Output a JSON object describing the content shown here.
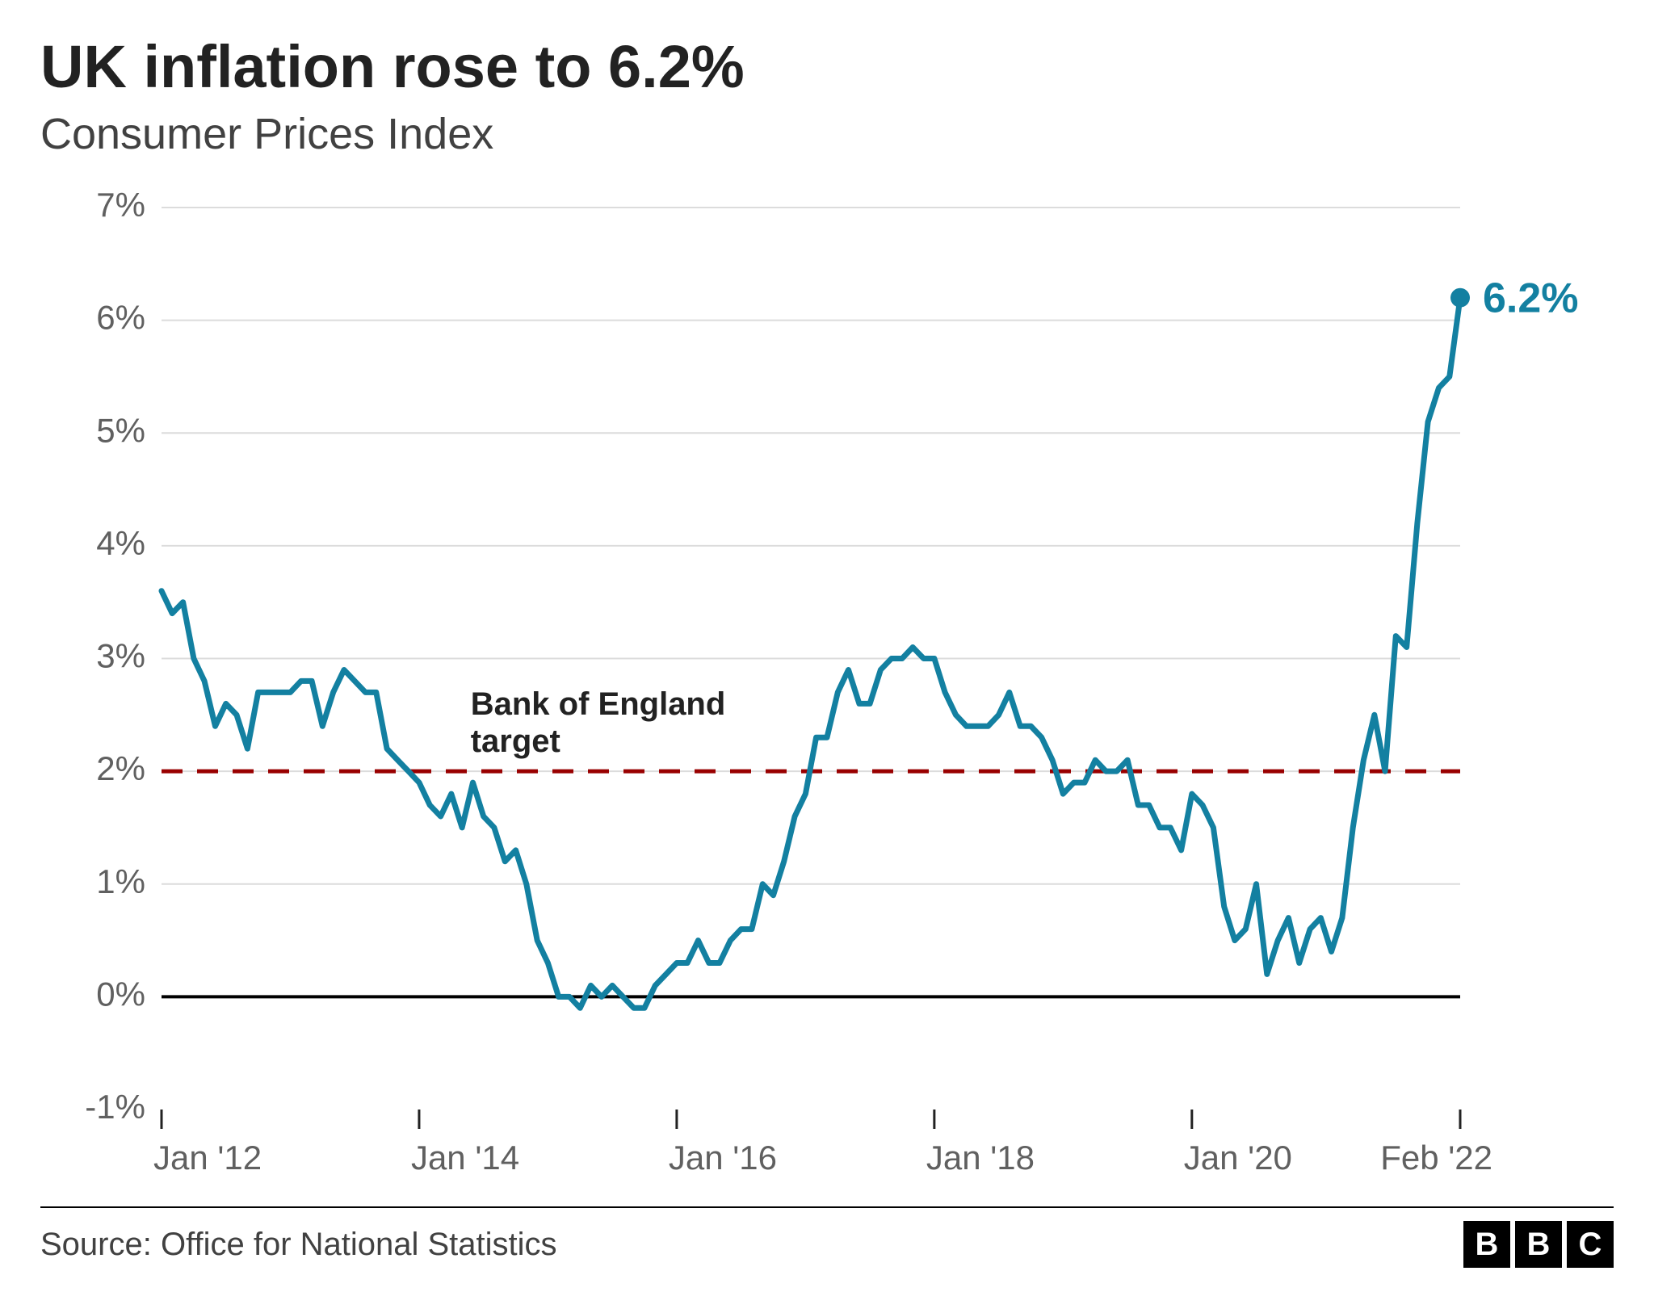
{
  "title": "UK inflation rose to 6.2%",
  "subtitle": "Consumer Prices Index",
  "source_label": "Source: Office for National Statistics",
  "logo_letters": [
    "B",
    "B",
    "C"
  ],
  "chart": {
    "type": "line",
    "background_color": "#ffffff",
    "grid_color": "#dcdcdc",
    "axis_color": "#222222",
    "zero_line_color": "#000000",
    "tick_color": "#222222",
    "line_color": "#1380a1",
    "line_width": 7,
    "marker_radius": 12,
    "marker_color": "#1380a1",
    "target_line_color": "#990000",
    "target_line_dash": "26 18",
    "target_value": 2.0,
    "target_label": "Bank of England\ntarget",
    "target_label_font_size": 40,
    "target_label_font_weight": 700,
    "target_label_color": "#222222",
    "callout_text": "6.2%",
    "callout_color": "#1380a1",
    "callout_font_size": 52,
    "callout_font_weight": 700,
    "ylim": [
      -1,
      7
    ],
    "y_ticks": [
      -1,
      0,
      1,
      2,
      3,
      4,
      5,
      6,
      7
    ],
    "y_tick_labels": [
      "-1%",
      "0%",
      "1%",
      "2%",
      "3%",
      "4%",
      "5%",
      "6%",
      "7%"
    ],
    "y_tick_font_size": 42,
    "y_tick_color": "#606060",
    "x_domain": [
      2012.0,
      2022.083
    ],
    "x_ticks": [
      2012.0,
      2014.0,
      2016.0,
      2018.0,
      2020.0,
      2022.083
    ],
    "x_tick_labels": [
      "Jan '12",
      "Jan '14",
      "Jan '16",
      "Jan '18",
      "Jan '20",
      "Feb '22"
    ],
    "x_tick_font_size": 42,
    "x_tick_color": "#606060",
    "data": [
      [
        2012.0,
        3.6
      ],
      [
        2012.083,
        3.4
      ],
      [
        2012.167,
        3.5
      ],
      [
        2012.25,
        3.0
      ],
      [
        2012.333,
        2.8
      ],
      [
        2012.417,
        2.4
      ],
      [
        2012.5,
        2.6
      ],
      [
        2012.583,
        2.5
      ],
      [
        2012.667,
        2.2
      ],
      [
        2012.75,
        2.7
      ],
      [
        2012.833,
        2.7
      ],
      [
        2012.917,
        2.7
      ],
      [
        2013.0,
        2.7
      ],
      [
        2013.083,
        2.8
      ],
      [
        2013.167,
        2.8
      ],
      [
        2013.25,
        2.4
      ],
      [
        2013.333,
        2.7
      ],
      [
        2013.417,
        2.9
      ],
      [
        2013.5,
        2.8
      ],
      [
        2013.583,
        2.7
      ],
      [
        2013.667,
        2.7
      ],
      [
        2013.75,
        2.2
      ],
      [
        2013.833,
        2.1
      ],
      [
        2013.917,
        2.0
      ],
      [
        2014.0,
        1.9
      ],
      [
        2014.083,
        1.7
      ],
      [
        2014.167,
        1.6
      ],
      [
        2014.25,
        1.8
      ],
      [
        2014.333,
        1.5
      ],
      [
        2014.417,
        1.9
      ],
      [
        2014.5,
        1.6
      ],
      [
        2014.583,
        1.5
      ],
      [
        2014.667,
        1.2
      ],
      [
        2014.75,
        1.3
      ],
      [
        2014.833,
        1.0
      ],
      [
        2014.917,
        0.5
      ],
      [
        2015.0,
        0.3
      ],
      [
        2015.083,
        0.0
      ],
      [
        2015.167,
        0.0
      ],
      [
        2015.25,
        -0.1
      ],
      [
        2015.333,
        0.1
      ],
      [
        2015.417,
        0.0
      ],
      [
        2015.5,
        0.1
      ],
      [
        2015.583,
        0.0
      ],
      [
        2015.667,
        -0.1
      ],
      [
        2015.75,
        -0.1
      ],
      [
        2015.833,
        0.1
      ],
      [
        2015.917,
        0.2
      ],
      [
        2016.0,
        0.3
      ],
      [
        2016.083,
        0.3
      ],
      [
        2016.167,
        0.5
      ],
      [
        2016.25,
        0.3
      ],
      [
        2016.333,
        0.3
      ],
      [
        2016.417,
        0.5
      ],
      [
        2016.5,
        0.6
      ],
      [
        2016.583,
        0.6
      ],
      [
        2016.667,
        1.0
      ],
      [
        2016.75,
        0.9
      ],
      [
        2016.833,
        1.2
      ],
      [
        2016.917,
        1.6
      ],
      [
        2017.0,
        1.8
      ],
      [
        2017.083,
        2.3
      ],
      [
        2017.167,
        2.3
      ],
      [
        2017.25,
        2.7
      ],
      [
        2017.333,
        2.9
      ],
      [
        2017.417,
        2.6
      ],
      [
        2017.5,
        2.6
      ],
      [
        2017.583,
        2.9
      ],
      [
        2017.667,
        3.0
      ],
      [
        2017.75,
        3.0
      ],
      [
        2017.833,
        3.1
      ],
      [
        2017.917,
        3.0
      ],
      [
        2018.0,
        3.0
      ],
      [
        2018.083,
        2.7
      ],
      [
        2018.167,
        2.5
      ],
      [
        2018.25,
        2.4
      ],
      [
        2018.333,
        2.4
      ],
      [
        2018.417,
        2.4
      ],
      [
        2018.5,
        2.5
      ],
      [
        2018.583,
        2.7
      ],
      [
        2018.667,
        2.4
      ],
      [
        2018.75,
        2.4
      ],
      [
        2018.833,
        2.3
      ],
      [
        2018.917,
        2.1
      ],
      [
        2019.0,
        1.8
      ],
      [
        2019.083,
        1.9
      ],
      [
        2019.167,
        1.9
      ],
      [
        2019.25,
        2.1
      ],
      [
        2019.333,
        2.0
      ],
      [
        2019.417,
        2.0
      ],
      [
        2019.5,
        2.1
      ],
      [
        2019.583,
        1.7
      ],
      [
        2019.667,
        1.7
      ],
      [
        2019.75,
        1.5
      ],
      [
        2019.833,
        1.5
      ],
      [
        2019.917,
        1.3
      ],
      [
        2020.0,
        1.8
      ],
      [
        2020.083,
        1.7
      ],
      [
        2020.167,
        1.5
      ],
      [
        2020.25,
        0.8
      ],
      [
        2020.333,
        0.5
      ],
      [
        2020.417,
        0.6
      ],
      [
        2020.5,
        1.0
      ],
      [
        2020.583,
        0.2
      ],
      [
        2020.667,
        0.5
      ],
      [
        2020.75,
        0.7
      ],
      [
        2020.833,
        0.3
      ],
      [
        2020.917,
        0.6
      ],
      [
        2021.0,
        0.7
      ],
      [
        2021.083,
        0.4
      ],
      [
        2021.167,
        0.7
      ],
      [
        2021.25,
        1.5
      ],
      [
        2021.333,
        2.1
      ],
      [
        2021.417,
        2.5
      ],
      [
        2021.5,
        2.0
      ],
      [
        2021.583,
        3.2
      ],
      [
        2021.667,
        3.1
      ],
      [
        2021.75,
        4.2
      ],
      [
        2021.833,
        5.1
      ],
      [
        2021.917,
        5.4
      ],
      [
        2022.0,
        5.5
      ],
      [
        2022.083,
        6.2
      ]
    ]
  }
}
